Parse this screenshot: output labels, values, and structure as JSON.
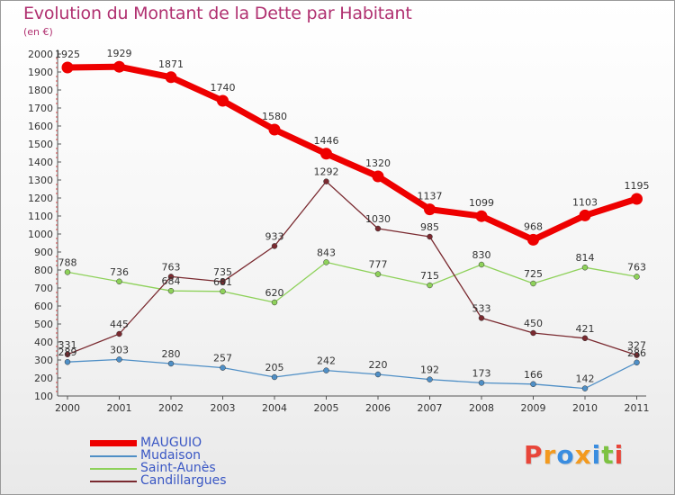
{
  "title": "Evolution du Montant de la Dette par Habitant",
  "subtitle": "(en €)",
  "logo": {
    "text": "Proxiti",
    "colors": [
      "#e8463a",
      "#f39a1f",
      "#3a8de0",
      "#f39a1f",
      "#3a8de0",
      "#7dc242",
      "#e8463a"
    ]
  },
  "chart_data": {
    "type": "line",
    "title": "Evolution du Montant de la Dette par Habitant",
    "subtitle": "(en €)",
    "x": [
      "2000",
      "2001",
      "2002",
      "2003",
      "2004",
      "2005",
      "2006",
      "2007",
      "2008",
      "2009",
      "2010",
      "2011"
    ],
    "ylim": [
      100,
      2000
    ],
    "yticks": [
      100,
      200,
      300,
      400,
      500,
      600,
      700,
      800,
      900,
      1000,
      1100,
      1200,
      1300,
      1400,
      1500,
      1600,
      1700,
      1800,
      1900,
      2000
    ],
    "grid": false,
    "legend": "bottom-left",
    "series": [
      {
        "name": "MAUGUIO",
        "color": "#ee0000",
        "values": [
          1925,
          1929,
          1871,
          1740,
          1580,
          1446,
          1320,
          1137,
          1099,
          968,
          1103,
          1195
        ]
      },
      {
        "name": "Mudaison",
        "color": "#4f8fc6",
        "values": [
          289,
          303,
          280,
          257,
          205,
          242,
          220,
          192,
          173,
          166,
          142,
          286
        ]
      },
      {
        "name": "Saint-Aunès",
        "color": "#8ed15a",
        "values": [
          788,
          736,
          684,
          681,
          620,
          843,
          777,
          715,
          830,
          725,
          814,
          763
        ]
      },
      {
        "name": "Candillargues",
        "color": "#7a2a30",
        "values": [
          331,
          445,
          763,
          735,
          933,
          1292,
          1030,
          985,
          533,
          450,
          421,
          327
        ]
      }
    ]
  }
}
